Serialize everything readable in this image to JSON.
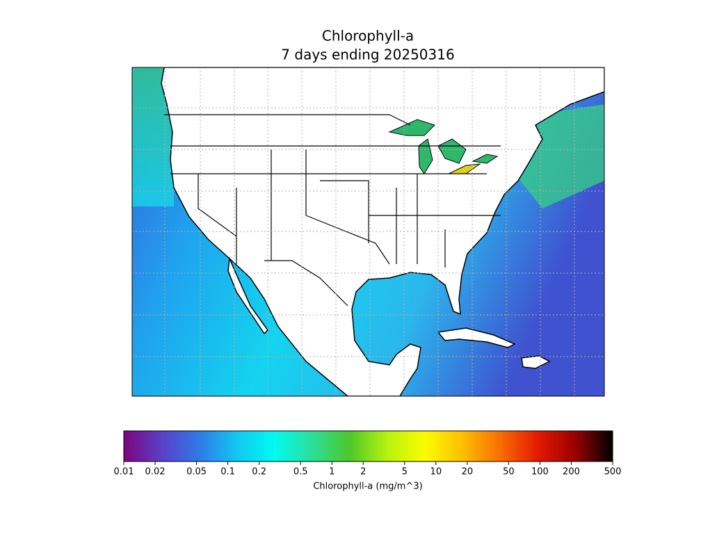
{
  "chart_data": {
    "type": "map",
    "title": "Chlorophyll-a",
    "subtitle": "7 days ending 20250316",
    "colorbar": {
      "label": "Chlorophyll-a (mg/m^3)",
      "scale": "log",
      "lim": [
        0.01,
        500
      ],
      "ticks": [
        0.01,
        0.02,
        0.05,
        0.1,
        0.2,
        0.5,
        1,
        2,
        5,
        10,
        20,
        50,
        100,
        200,
        500
      ],
      "colormap": [
        "#7a067e",
        "#5b3fc7",
        "#2f7ae8",
        "#12c6f2",
        "#00fbf0",
        "#2bdf9a",
        "#4dc82b",
        "#b6f20e",
        "#fbfc00",
        "#fbc000",
        "#f86f00",
        "#e41a00",
        "#9a0000",
        "#000000"
      ]
    }
  }
}
